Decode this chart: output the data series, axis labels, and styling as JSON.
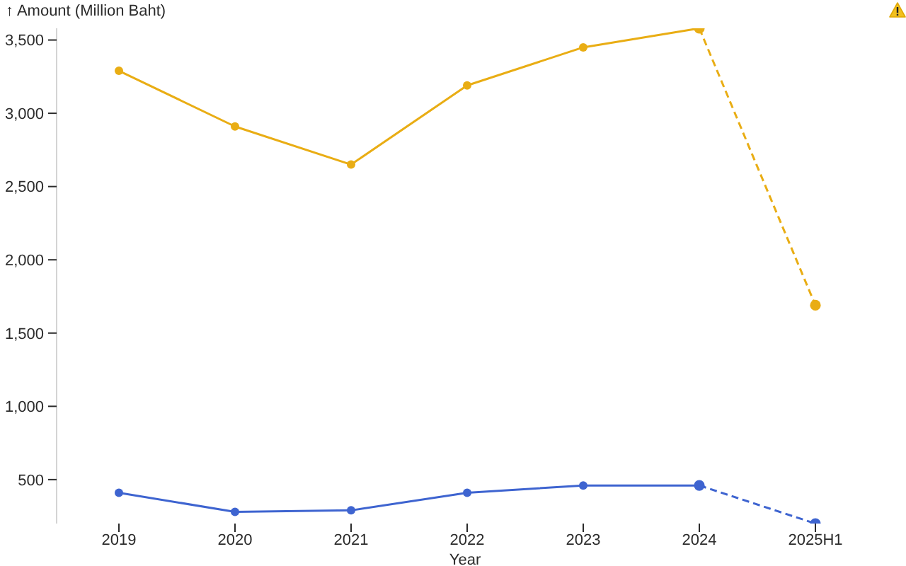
{
  "chart_data": {
    "type": "line",
    "ylabel": "↑ Amount (Million Baht)",
    "xlabel": "Year",
    "categories": [
      "2019",
      "2020",
      "2021",
      "2022",
      "2023",
      "2024",
      "2025H1"
    ],
    "series": [
      {
        "color": "#e9ad14",
        "line_style": "solid",
        "values": [
          3290,
          2910,
          2650,
          3190,
          3450,
          3580,
          null
        ]
      },
      {
        "color": "#e9ad14",
        "line_style": "dashed",
        "values": [
          null,
          null,
          null,
          null,
          null,
          3580,
          1690
        ]
      },
      {
        "color": "#3e64d0",
        "line_style": "solid",
        "values": [
          410,
          280,
          290,
          410,
          460,
          460,
          null
        ]
      },
      {
        "color": "#3e64d0",
        "line_style": "dashed",
        "values": [
          null,
          null,
          null,
          null,
          null,
          460,
          200
        ]
      }
    ],
    "ylim": [
      200,
      3580
    ],
    "yticks": [
      {
        "value": 500,
        "label": "500"
      },
      {
        "value": 1000,
        "label": "1,000"
      },
      {
        "value": 1500,
        "label": "1,500"
      },
      {
        "value": 2000,
        "label": "2,000"
      },
      {
        "value": 2500,
        "label": "2,500"
      },
      {
        "value": 3000,
        "label": "3,000"
      },
      {
        "value": 3500,
        "label": "3,500"
      }
    ],
    "marker": "circle"
  }
}
